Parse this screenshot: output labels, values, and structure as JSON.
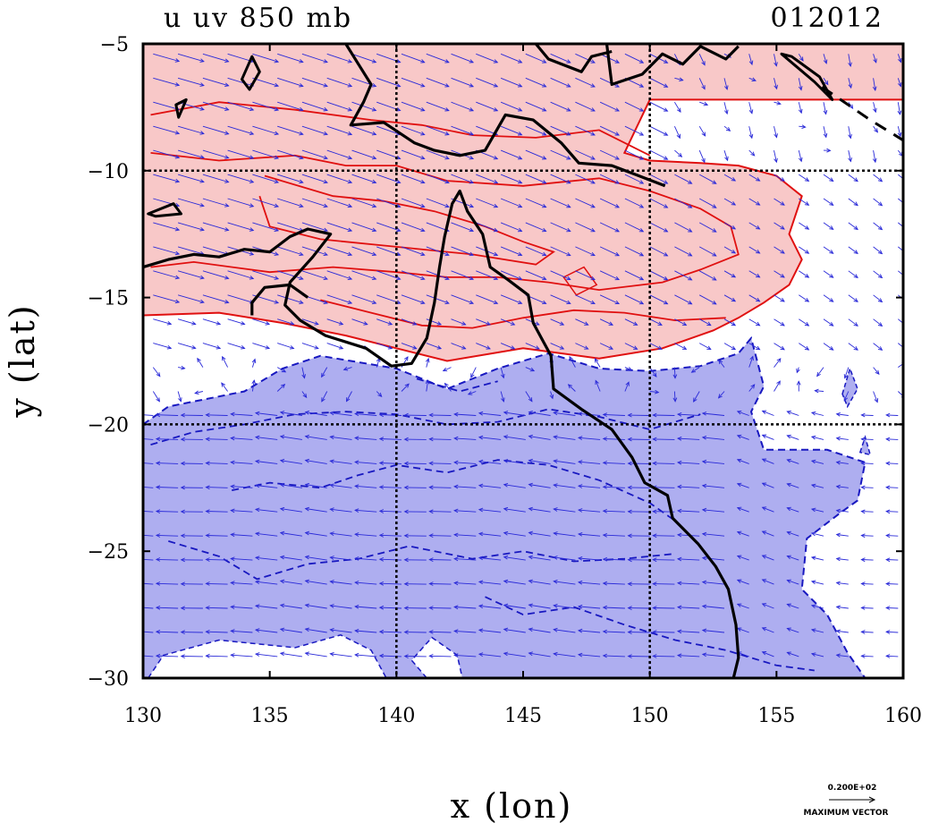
{
  "chart_data": {
    "type": "map-contour-vector",
    "title_left": "u uv 850 mb",
    "title_right": "012012",
    "xlabel": "x (lon)",
    "ylabel": "y (lat)",
    "xlim": [
      130,
      160
    ],
    "ylim": [
      -30,
      -5
    ],
    "xticks": [
      130,
      135,
      140,
      145,
      150,
      155,
      160
    ],
    "yticks": [
      -5,
      -10,
      -15,
      -20,
      -25,
      -30
    ],
    "xtick_labels": [
      "130",
      "135",
      "140",
      "145",
      "150",
      "155",
      "160"
    ],
    "ytick_labels": [
      "−5",
      "−10",
      "−15",
      "−20",
      "−25",
      "−30"
    ],
    "gridlines_lon": [
      140,
      150
    ],
    "gridlines_lat": [
      -10,
      -20
    ],
    "colors": {
      "positive_fill": "#f8c8c8",
      "positive_line": "#e01010",
      "negative_fill": "#aeaef0",
      "negative_line": "#1818c0",
      "coast": "#000000",
      "vector": "#2a2ad8"
    },
    "regions": {
      "positive": [
        [
          130,
          -5
        ],
        [
          160,
          -5
        ],
        [
          160,
          -7.2
        ],
        [
          150,
          -7.2
        ],
        [
          149,
          -9.3
        ],
        [
          150,
          -9.6
        ],
        [
          152,
          -9.7
        ],
        [
          153.5,
          -9.8
        ],
        [
          155,
          -10.2
        ],
        [
          156,
          -11
        ],
        [
          155.5,
          -12.5
        ],
        [
          156,
          -13.5
        ],
        [
          155.5,
          -14.5
        ],
        [
          154.5,
          -15.2
        ],
        [
          153.5,
          -15.8
        ],
        [
          152.5,
          -16.3
        ],
        [
          150.5,
          -17
        ],
        [
          148,
          -17.4
        ],
        [
          145,
          -17
        ],
        [
          142,
          -17.5
        ],
        [
          140,
          -17
        ],
        [
          138,
          -16.5
        ],
        [
          135.5,
          -16
        ],
        [
          133,
          -15.6
        ],
        [
          130,
          -15.7
        ]
      ],
      "negative": [
        [
          130,
          -20
        ],
        [
          131,
          -19.3
        ],
        [
          134,
          -18.7
        ],
        [
          135.5,
          -17.8
        ],
        [
          137,
          -17.3
        ],
        [
          140,
          -17.8
        ],
        [
          142,
          -18.6
        ],
        [
          144,
          -17.8
        ],
        [
          146,
          -17.2
        ],
        [
          148,
          -17.8
        ],
        [
          150,
          -17.9
        ],
        [
          152,
          -17.7
        ],
        [
          153.5,
          -17.2
        ],
        [
          154,
          -16.6
        ],
        [
          154.5,
          -18.5
        ],
        [
          154,
          -19.5
        ],
        [
          154.5,
          -21
        ],
        [
          157,
          -21
        ],
        [
          158.5,
          -21.5
        ],
        [
          158.2,
          -23
        ],
        [
          157.5,
          -23.5
        ],
        [
          156.2,
          -24.5
        ],
        [
          156,
          -26.5
        ],
        [
          157,
          -27.5
        ],
        [
          157.8,
          -29
        ],
        [
          158.5,
          -30
        ],
        [
          130,
          -30
        ]
      ],
      "neg_hole": [
        [
          141.2,
          -30
        ],
        [
          140.6,
          -29.3
        ],
        [
          141.4,
          -28.4
        ],
        [
          142.4,
          -29.1
        ],
        [
          142.6,
          -30
        ]
      ],
      "neg_hole2": [
        [
          130.2,
          -30
        ],
        [
          130.8,
          -29.1
        ],
        [
          133,
          -28.5
        ],
        [
          136,
          -28.8
        ],
        [
          137.8,
          -28.3
        ],
        [
          139,
          -28.9
        ],
        [
          139.6,
          -30
        ]
      ]
    },
    "contours_pos": [
      [
        [
          130.3,
          -7.8
        ],
        [
          133,
          -7.3
        ],
        [
          136,
          -7.6
        ],
        [
          139,
          -8
        ],
        [
          141,
          -8.2
        ],
        [
          143,
          -8.6
        ],
        [
          145.5,
          -8.7
        ],
        [
          148,
          -8.4
        ],
        [
          150,
          -9.4
        ]
      ],
      [
        [
          130.3,
          -9.3
        ],
        [
          133,
          -9.6
        ],
        [
          136,
          -9.4
        ],
        [
          138,
          -9.8
        ],
        [
          140,
          -9.8
        ],
        [
          142,
          -10.4
        ],
        [
          145,
          -10.6
        ],
        [
          148,
          -10.3
        ],
        [
          150,
          -10.8
        ],
        [
          152,
          -11.5
        ],
        [
          153.2,
          -12.2
        ],
        [
          153.5,
          -13.3
        ],
        [
          152,
          -13.9
        ],
        [
          150.5,
          -14.4
        ],
        [
          148,
          -14.7
        ],
        [
          146,
          -14.4
        ],
        [
          144,
          -14.2
        ],
        [
          142,
          -14.2
        ],
        [
          140,
          -14
        ],
        [
          137.5,
          -13.8
        ],
        [
          135,
          -14
        ],
        [
          132,
          -13.6
        ],
        [
          130.3,
          -13.8
        ]
      ],
      [
        [
          134.8,
          -10.2
        ],
        [
          137.5,
          -11
        ],
        [
          139.5,
          -11.2
        ],
        [
          141.5,
          -11.6
        ],
        [
          143.5,
          -12.2
        ],
        [
          145,
          -12.8
        ],
        [
          146.2,
          -13.2
        ],
        [
          145.5,
          -13.7
        ],
        [
          143,
          -13.3
        ],
        [
          140,
          -13
        ],
        [
          137,
          -12.7
        ],
        [
          135,
          -12.2
        ],
        [
          134.6,
          -11
        ]
      ],
      [
        [
          137,
          -15.1
        ],
        [
          139,
          -15.6
        ],
        [
          141,
          -16.1
        ],
        [
          143,
          -16.2
        ],
        [
          145,
          -15.8
        ],
        [
          147,
          -15.5
        ],
        [
          149,
          -15.6
        ],
        [
          151,
          -15.9
        ],
        [
          153,
          -15.8
        ]
      ]
    ],
    "contours_neg": [
      [
        [
          130.3,
          -20.8
        ],
        [
          132,
          -20.3
        ],
        [
          134,
          -20
        ],
        [
          136,
          -19.6
        ],
        [
          138,
          -19.5
        ],
        [
          140,
          -19.6
        ],
        [
          142,
          -20
        ],
        [
          144,
          -19.9
        ],
        [
          146,
          -19.4
        ],
        [
          148,
          -19.7
        ],
        [
          150,
          -20.2
        ],
        [
          152,
          -19.6
        ]
      ],
      [
        [
          133.5,
          -22.6
        ],
        [
          135,
          -22.3
        ],
        [
          137,
          -22.5
        ],
        [
          138.5,
          -22
        ],
        [
          140,
          -21.6
        ],
        [
          142,
          -21.9
        ],
        [
          144,
          -21.4
        ],
        [
          146,
          -21.6
        ],
        [
          148,
          -22.2
        ],
        [
          150,
          -23.1
        ],
        [
          151,
          -23.8
        ]
      ],
      [
        [
          131,
          -24.6
        ],
        [
          133,
          -25.2
        ],
        [
          134.5,
          -26.1
        ],
        [
          136.5,
          -25.5
        ],
        [
          138.5,
          -25.3
        ],
        [
          140.5,
          -24.8
        ],
        [
          143,
          -25.3
        ],
        [
          145,
          -25
        ],
        [
          147,
          -25.4
        ],
        [
          149,
          -25.3
        ],
        [
          151,
          -25.1
        ]
      ],
      [
        [
          143.5,
          -26.8
        ],
        [
          145,
          -27.5
        ],
        [
          147,
          -27.2
        ],
        [
          149,
          -27.9
        ],
        [
          151,
          -28.5
        ],
        [
          153,
          -28.9
        ],
        [
          155,
          -29.5
        ],
        [
          156.5,
          -29.7
        ]
      ],
      [
        [
          140.8,
          -18.2
        ],
        [
          142.5,
          -18.7
        ],
        [
          144,
          -18.3
        ]
      ]
    ],
    "coast": [
      [
        [
          130,
          -13.8
        ],
        [
          131,
          -13.5
        ],
        [
          132,
          -13.3
        ],
        [
          133,
          -13.4
        ],
        [
          134,
          -13.1
        ],
        [
          135,
          -13.2
        ],
        [
          135.8,
          -12.6
        ],
        [
          136.5,
          -12.3
        ],
        [
          137.4,
          -12.5
        ],
        [
          136.7,
          -13.4
        ],
        [
          135.8,
          -14.4
        ],
        [
          135.6,
          -15.3
        ],
        [
          136.2,
          -15.9
        ],
        [
          137.2,
          -16.5
        ],
        [
          138.8,
          -17
        ],
        [
          139.8,
          -17.7
        ],
        [
          140.6,
          -17.6
        ],
        [
          141.2,
          -16.6
        ],
        [
          141.5,
          -15.2
        ],
        [
          141.7,
          -13.8
        ],
        [
          141.9,
          -12.6
        ],
        [
          142.2,
          -11.3
        ],
        [
          142.5,
          -10.8
        ],
        [
          142.8,
          -11.6
        ],
        [
          143.4,
          -12.5
        ],
        [
          143.7,
          -13.8
        ],
        [
          144.4,
          -14.3
        ],
        [
          145.2,
          -14.9
        ],
        [
          145.4,
          -16
        ],
        [
          146.1,
          -17.3
        ],
        [
          146.2,
          -18.6
        ],
        [
          147.3,
          -19.4
        ],
        [
          148.5,
          -20.2
        ],
        [
          149.3,
          -21.3
        ],
        [
          149.8,
          -22.3
        ],
        [
          150.7,
          -22.8
        ],
        [
          150.9,
          -23.7
        ],
        [
          151.9,
          -24.7
        ],
        [
          152.6,
          -25.6
        ],
        [
          153.1,
          -26.5
        ],
        [
          153.4,
          -27.9
        ],
        [
          153.5,
          -29.2
        ],
        [
          153.3,
          -30
        ]
      ],
      [
        [
          138,
          -5
        ],
        [
          138.5,
          -5.8
        ],
        [
          139,
          -6.6
        ],
        [
          138.7,
          -7.3
        ],
        [
          138.2,
          -8.2
        ],
        [
          139.5,
          -8.1
        ],
        [
          140.7,
          -8.9
        ],
        [
          141.5,
          -9.2
        ],
        [
          142.5,
          -9.4
        ],
        [
          143.5,
          -9.2
        ],
        [
          144.3,
          -7.8
        ],
        [
          145.4,
          -8
        ],
        [
          146.5,
          -8.9
        ],
        [
          147.2,
          -9.7
        ],
        [
          148.5,
          -9.8
        ],
        [
          149.3,
          -10.1
        ],
        [
          150.6,
          -10.6
        ]
      ],
      [
        [
          145.5,
          -5
        ],
        [
          146,
          -5.6
        ],
        [
          147.3,
          -6.1
        ],
        [
          147.7,
          -5.5
        ],
        [
          148.5,
          -5.3
        ]
      ],
      [
        [
          148.3,
          -5
        ],
        [
          148.5,
          -6.6
        ],
        [
          149.7,
          -6.2
        ],
        [
          150.5,
          -5.4
        ],
        [
          151.3,
          -5.8
        ],
        [
          152,
          -5.1
        ],
        [
          153,
          -5.6
        ],
        [
          153.5,
          -5.1
        ]
      ],
      [
        [
          134.3,
          -15.7
        ],
        [
          134.3,
          -15.2
        ],
        [
          134.8,
          -14.6
        ],
        [
          135.8,
          -14.5
        ],
        [
          136.5,
          -15
        ]
      ]
    ],
    "islands": [
      [
        [
          134.2,
          -6.8
        ],
        [
          134.6,
          -6.1
        ],
        [
          134.3,
          -5.5
        ],
        [
          133.9,
          -6.4
        ]
      ],
      [
        [
          131.4,
          -7.9
        ],
        [
          131.7,
          -7.2
        ],
        [
          131.3,
          -7.4
        ]
      ],
      [
        [
          130.2,
          -11.7
        ],
        [
          131.2,
          -11.3
        ],
        [
          131.5,
          -11.7
        ],
        [
          130.5,
          -11.8
        ]
      ],
      [
        [
          155.2,
          -5.4
        ],
        [
          156.5,
          -6.5
        ],
        [
          157.2,
          -7.2
        ],
        [
          156.7,
          -6.3
        ],
        [
          155.6,
          -5.5
        ]
      ]
    ],
    "coast_dashed": [
      [
        [
          156.8,
          -6.7
        ],
        [
          158.7,
          -8
        ],
        [
          160,
          -8.8
        ]
      ]
    ],
    "blobs_neg": [
      [
        [
          157.6,
          -18.8
        ],
        [
          157.9,
          -17.8
        ],
        [
          158.2,
          -18.6
        ],
        [
          157.8,
          -19.3
        ]
      ],
      [
        [
          158.3,
          -21.1
        ],
        [
          158.5,
          -20.5
        ],
        [
          158.7,
          -21.2
        ]
      ]
    ],
    "blobs_pos": [
      [
        [
          146.6,
          -14.2
        ],
        [
          147.4,
          -13.8
        ],
        [
          147.9,
          -14.5
        ],
        [
          147.1,
          -14.9
        ]
      ]
    ],
    "vector_scale_label": "0.200E+02",
    "vector_name_label": "MAXIMUM VECTOR"
  }
}
